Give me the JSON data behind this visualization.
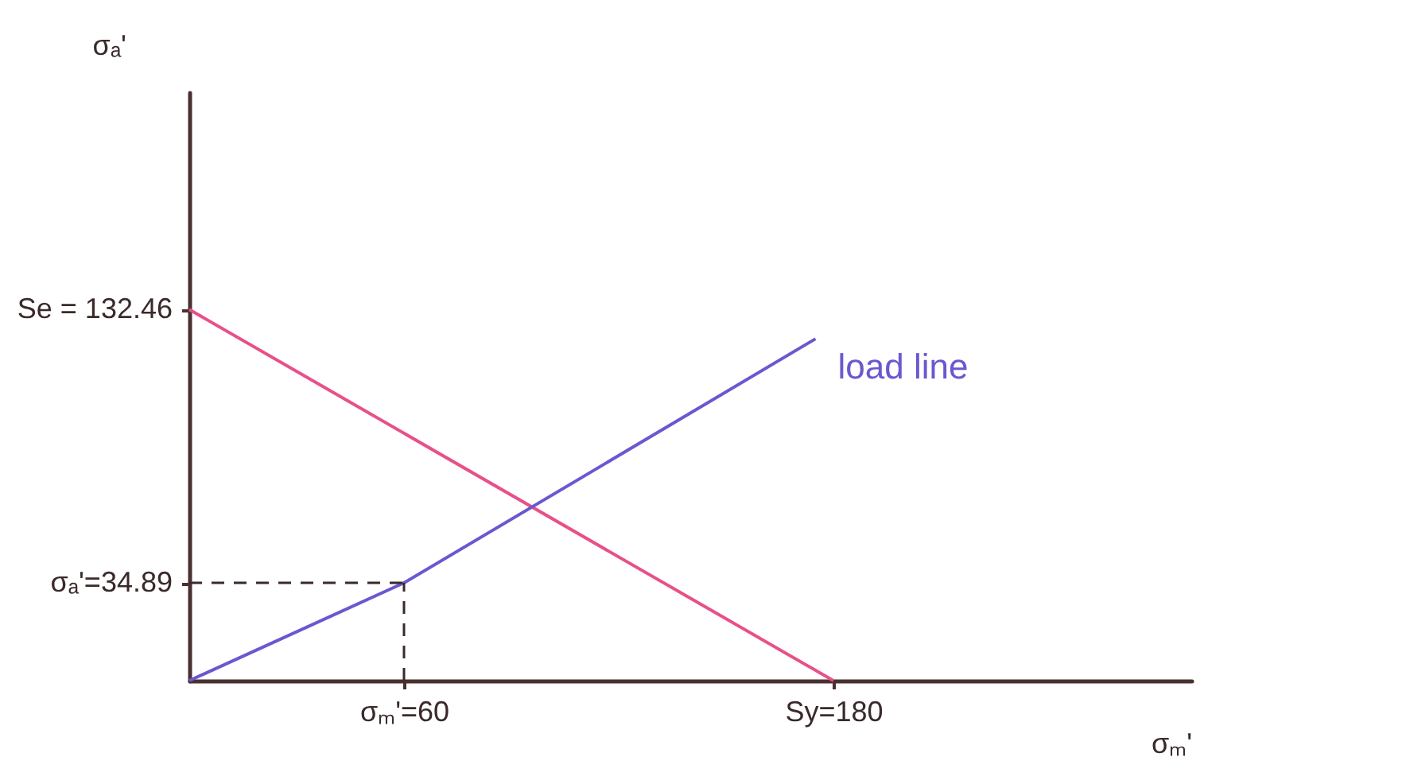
{
  "chart_data": {
    "type": "line",
    "xlabel": "σₘ'",
    "ylabel": "σₐ'",
    "xlim": [
      0,
      280
    ],
    "ylim": [
      0,
      210
    ],
    "xticks": [
      {
        "value": 60,
        "label": "σₘ'=60"
      },
      {
        "value": 180,
        "label": "Sy=180"
      }
    ],
    "yticks": [
      {
        "value": 34.89,
        "label": "σₐ'=34.89"
      },
      {
        "value": 132.46,
        "label": "Se = 132.46"
      }
    ],
    "series": [
      {
        "color": "#e8508a",
        "x": [
          0,
          180
        ],
        "values": [
          132.46,
          0
        ]
      },
      {
        "name": "load line",
        "color": "#6a58d0",
        "x": [
          0,
          60,
          175
        ],
        "values": [
          0,
          34.89,
          122
        ]
      }
    ],
    "ref_lines": [
      {
        "axis": "x",
        "value": 60,
        "line_style": "dashed",
        "color": "#3a2a2a"
      },
      {
        "axis": "y",
        "value": 34.89,
        "line_style": "dashed",
        "color": "#3a2a2a"
      }
    ],
    "grid": false,
    "legend": false,
    "marker": "none",
    "line_style": "solid"
  }
}
